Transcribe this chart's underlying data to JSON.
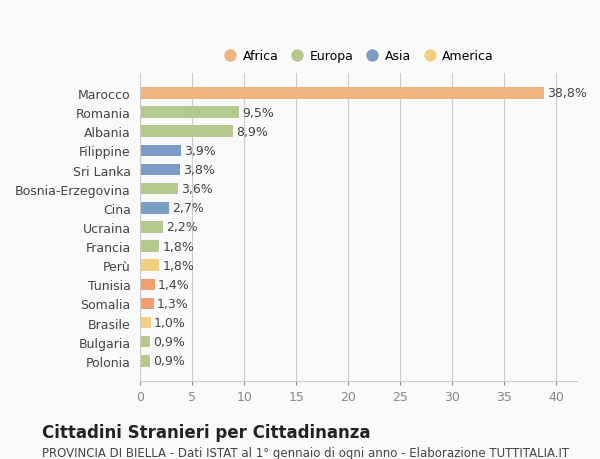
{
  "title": "Cittadini Stranieri per Cittadinanza",
  "subtitle": "PROVINCIA DI BIELLA - Dati ISTAT al 1° gennaio di ogni anno - Elaborazione TUTTITALIA.IT",
  "categories": [
    "Marocco",
    "Romania",
    "Albania",
    "Filippine",
    "Sri Lanka",
    "Bosnia-Erzegovina",
    "Cina",
    "Ucraina",
    "Francia",
    "Perù",
    "Tunisia",
    "Somalia",
    "Brasile",
    "Bulgaria",
    "Polonia"
  ],
  "values": [
    38.8,
    9.5,
    8.9,
    3.9,
    3.8,
    3.6,
    2.7,
    2.2,
    1.8,
    1.8,
    1.4,
    1.3,
    1.0,
    0.9,
    0.9
  ],
  "labels": [
    "38,8%",
    "9,5%",
    "8,9%",
    "3,9%",
    "3,8%",
    "3,6%",
    "2,7%",
    "2,2%",
    "1,8%",
    "1,8%",
    "1,4%",
    "1,3%",
    "1,0%",
    "0,9%",
    "0,9%"
  ],
  "colors": [
    "#f0b482",
    "#b5c98e",
    "#b5c98e",
    "#7b9cc5",
    "#7b9cc5",
    "#b5c98e",
    "#7b9cc5",
    "#b5c98e",
    "#b5c98e",
    "#f0d080",
    "#f0a070",
    "#f0a070",
    "#f0d080",
    "#b5c98e",
    "#b5c98e"
  ],
  "legend": [
    {
      "label": "Africa",
      "color": "#f0b482"
    },
    {
      "label": "Europa",
      "color": "#b5c98e"
    },
    {
      "label": "Asia",
      "color": "#7b9cc5"
    },
    {
      "label": "America",
      "color": "#f0d080"
    }
  ],
  "xlim": [
    0,
    42
  ],
  "xticks": [
    0,
    5,
    10,
    15,
    20,
    25,
    30,
    35,
    40
  ],
  "background_color": "#f9f9f9",
  "label_fontsize": 9,
  "title_fontsize": 12,
  "subtitle_fontsize": 8.5
}
